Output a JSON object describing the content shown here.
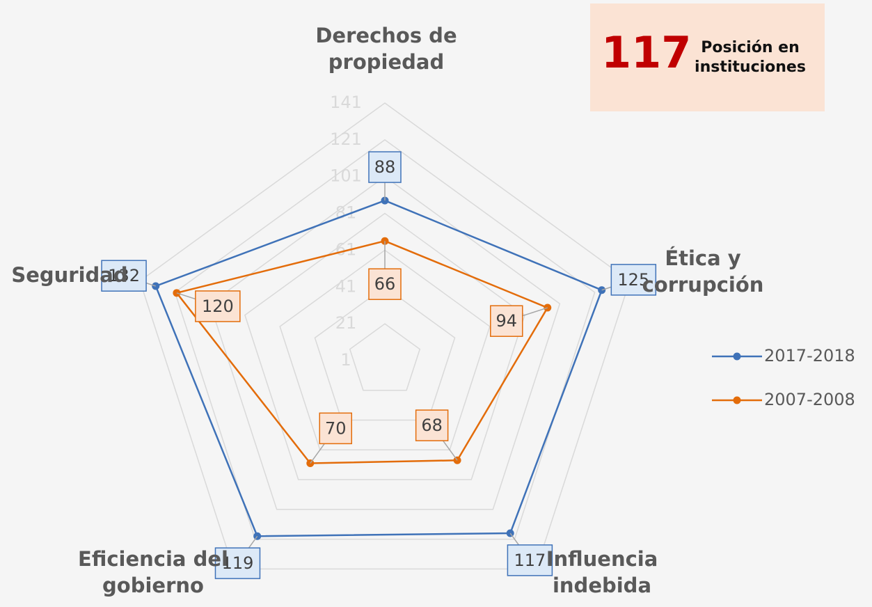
{
  "chart_data": {
    "type": "radar",
    "categories": [
      "Derechos de propiedad",
      "Ética y corrupción",
      "Influencia indebida",
      "Eficiencia del gobierno",
      "Seguridad"
    ],
    "series": [
      {
        "name": "2017-2018",
        "color": "#3f72b8",
        "values": [
          88,
          125,
          117,
          119,
          132
        ]
      },
      {
        "name": "2007-2008",
        "color": "#e36c0a",
        "values": [
          66,
          94,
          68,
          70,
          120
        ]
      }
    ],
    "rlim": [
      1,
      141
    ],
    "rticks": [
      1,
      21,
      41,
      61,
      81,
      101,
      121,
      141
    ],
    "grid": true,
    "legend": "right",
    "annotation": {
      "value": 117,
      "text": "Posición en instituciones"
    }
  }
}
